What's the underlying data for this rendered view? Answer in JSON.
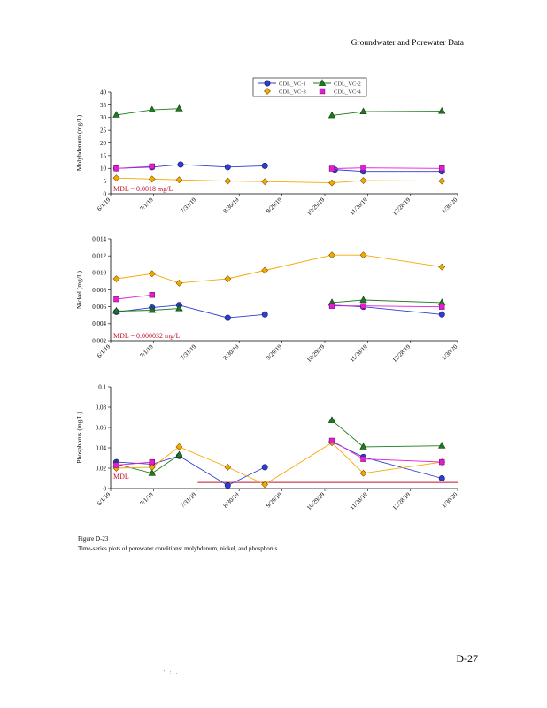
{
  "page": {
    "header": "Groundwater and Porewater Data",
    "caption_line1": "Figure D-23",
    "caption_line2": "Time-series plots of porewater conditions: molybdenum, nickel, and phosphorus",
    "page_number": "D-27",
    "footer_mark": "' ; ,"
  },
  "chart_data": [
    {
      "type": "line",
      "title": "",
      "ylabel": "Molybdenum (mg/L)",
      "xlabel": "",
      "ylim": [
        0,
        40
      ],
      "yticks": [
        0,
        5,
        10,
        15,
        20,
        25,
        30,
        35,
        40
      ],
      "ytick_labels": [
        "0",
        "5",
        "10",
        "15",
        "20",
        "25",
        "30",
        "35",
        "40"
      ],
      "xlim": [
        "2019-06-01",
        "2020-01-30"
      ],
      "xtick_dates": [
        "2019-06-01",
        "2019-07-01",
        "2019-07-31",
        "2019-08-30",
        "2019-09-29",
        "2019-10-29",
        "2019-11-28",
        "2019-12-28",
        "2020-01-30"
      ],
      "xtick_labels": [
        "6/1/19",
        "7/1/19",
        "7/31/19",
        "8/30/19",
        "9/29/19",
        "10/29/19",
        "11/28/19",
        "12/28/19",
        "1/30/20"
      ],
      "legend": {
        "placement": "top-center",
        "entries": [
          "CDL_VC-1",
          "CDL_VC-2",
          "CDL_VC-3",
          "CDL_VC-4"
        ]
      },
      "mdl_label": "MDL = 0.0018 mg/L",
      "mdl_line": null,
      "series": [
        {
          "name": "CDL_VC-1",
          "color": "#2a3fd1",
          "marker": "circle",
          "segments": [
            [
              [
                "2019-06-05",
                10.0
              ],
              [
                "2019-06-30",
                10.5
              ],
              [
                "2019-07-20",
                11.5
              ],
              [
                "2019-08-22",
                10.5
              ],
              [
                "2019-09-17",
                11.0
              ]
            ],
            [
              [
                "2019-11-05",
                9.5
              ],
              [
                "2019-11-25",
                8.8
              ],
              [
                "2020-01-19",
                8.8
              ]
            ]
          ]
        },
        {
          "name": "CDL_VC-2",
          "color": "#1e7a1e",
          "marker": "triangle",
          "segments": [
            [
              [
                "2019-06-05",
                31.0
              ],
              [
                "2019-06-30",
                33.0
              ],
              [
                "2019-07-19",
                33.5
              ]
            ],
            [
              [
                "2019-11-03",
                30.8
              ],
              [
                "2019-11-25",
                32.3
              ],
              [
                "2020-01-19",
                32.5
              ]
            ]
          ]
        },
        {
          "name": "CDL_VC-3",
          "color": "#f5a800",
          "marker": "diamond",
          "segments": [
            [
              [
                "2019-06-05",
                6.2
              ],
              [
                "2019-06-30",
                5.8
              ],
              [
                "2019-07-19",
                5.5
              ],
              [
                "2019-08-22",
                5.0
              ],
              [
                "2019-09-17",
                4.8
              ],
              [
                "2019-11-03",
                4.3
              ],
              [
                "2019-11-25",
                5.2
              ],
              [
                "2020-01-19",
                5.0
              ]
            ]
          ]
        },
        {
          "name": "CDL_VC-4",
          "color": "#e21ed5",
          "marker": "square",
          "segments": [
            [
              [
                "2019-06-05",
                10.0
              ],
              [
                "2019-06-30",
                10.8
              ]
            ],
            [
              [
                "2019-11-03",
                9.9
              ],
              [
                "2019-11-25",
                10.2
              ],
              [
                "2020-01-19",
                10.0
              ]
            ]
          ]
        }
      ]
    },
    {
      "type": "line",
      "title": "",
      "ylabel": "Nickel (mg/L)",
      "xlabel": "",
      "ylim": [
        0.002,
        0.014
      ],
      "yticks": [
        0.002,
        0.004,
        0.006,
        0.008,
        0.01,
        0.012,
        0.014
      ],
      "ytick_labels": [
        "0.002",
        "0.004",
        "0.006",
        "0.008",
        "0.010",
        "0.012",
        "0.014"
      ],
      "xlim": [
        "2019-06-01",
        "2020-01-30"
      ],
      "xtick_dates": [
        "2019-06-01",
        "2019-07-01",
        "2019-07-31",
        "2019-08-30",
        "2019-09-29",
        "2019-10-29",
        "2019-11-28",
        "2019-12-28",
        "2020-01-30"
      ],
      "xtick_labels": [
        "6/1/19",
        "7/1/19",
        "7/31/19",
        "8/30/19",
        "9/29/19",
        "10/29/19",
        "11/28/19",
        "12/28/19",
        "1/30/20"
      ],
      "legend": null,
      "mdl_label": "MDL = 0.000032 mg/L",
      "mdl_line": null,
      "series": [
        {
          "name": "CDL_VC-1",
          "color": "#2a3fd1",
          "marker": "circle",
          "segments": [
            [
              [
                "2019-06-05",
                0.0054
              ],
              [
                "2019-06-30",
                0.0059
              ],
              [
                "2019-07-19",
                0.0062
              ],
              [
                "2019-08-22",
                0.0047
              ],
              [
                "2019-09-17",
                0.0051
              ]
            ],
            [
              [
                "2019-11-03",
                0.0062
              ],
              [
                "2019-11-25",
                0.006
              ],
              [
                "2020-01-19",
                0.0051
              ]
            ]
          ]
        },
        {
          "name": "CDL_VC-2",
          "color": "#1e7a1e",
          "marker": "triangle",
          "segments": [
            [
              [
                "2019-06-05",
                0.0055
              ],
              [
                "2019-06-30",
                0.0056
              ],
              [
                "2019-07-19",
                0.0058
              ]
            ],
            [
              [
                "2019-11-03",
                0.0065
              ],
              [
                "2019-11-25",
                0.0068
              ],
              [
                "2020-01-19",
                0.0065
              ]
            ]
          ]
        },
        {
          "name": "CDL_VC-3",
          "color": "#f5a800",
          "marker": "diamond",
          "segments": [
            [
              [
                "2019-06-05",
                0.0093
              ],
              [
                "2019-06-30",
                0.0099
              ],
              [
                "2019-07-19",
                0.0088
              ],
              [
                "2019-08-22",
                0.0093
              ],
              [
                "2019-09-17",
                0.0103
              ],
              [
                "2019-11-03",
                0.0121
              ],
              [
                "2019-11-25",
                0.0121
              ],
              [
                "2020-01-19",
                0.0107
              ]
            ]
          ]
        },
        {
          "name": "CDL_VC-4",
          "color": "#e21ed5",
          "marker": "square",
          "segments": [
            [
              [
                "2019-06-05",
                0.0069
              ],
              [
                "2019-06-30",
                0.0074
              ]
            ],
            [
              [
                "2019-11-03",
                0.0061
              ],
              [
                "2019-11-25",
                0.0061
              ],
              [
                "2020-01-19",
                0.006
              ]
            ]
          ]
        }
      ]
    },
    {
      "type": "line",
      "title": "",
      "ylabel": "Phosphorus (mg/L)",
      "xlabel": "",
      "ylim": [
        0,
        0.1
      ],
      "yticks": [
        0,
        0.02,
        0.04,
        0.06,
        0.08,
        0.1
      ],
      "ytick_labels": [
        "0",
        "0.02",
        "0.04",
        "0.06",
        "0.08",
        "0.1"
      ],
      "xlim": [
        "2019-06-01",
        "2020-01-30"
      ],
      "xtick_dates": [
        "2019-06-01",
        "2019-07-01",
        "2019-07-31",
        "2019-08-30",
        "2019-09-29",
        "2019-10-29",
        "2019-11-28",
        "2019-12-28",
        "2020-01-30"
      ],
      "xtick_labels": [
        "6/1/19",
        "7/1/19",
        "7/31/19",
        "8/30/19",
        "9/29/19",
        "10/29/19",
        "11/28/19",
        "12/28/19",
        "1/30/20"
      ],
      "legend": null,
      "mdl_label": "MDL",
      "mdl_line": {
        "value": 0.006,
        "from": "2019-08-01",
        "to": "2020-01-30",
        "color": "#c0102a"
      },
      "series": [
        {
          "name": "CDL_VC-1",
          "color": "#2a3fd1",
          "marker": "circle",
          "segments": [
            [
              [
                "2019-06-05",
                0.026
              ],
              [
                "2019-06-30",
                0.024
              ],
              [
                "2019-07-19",
                0.032
              ],
              [
                "2019-08-22",
                0.003
              ],
              [
                "2019-09-17",
                0.021
              ]
            ],
            [
              [
                "2019-11-03",
                0.046
              ],
              [
                "2019-11-25",
                0.031
              ],
              [
                "2020-01-19",
                0.01
              ]
            ]
          ]
        },
        {
          "name": "CDL_VC-2",
          "color": "#1e7a1e",
          "marker": "triangle",
          "segments": [
            [
              [
                "2019-06-05",
                0.024
              ],
              [
                "2019-06-30",
                0.015
              ],
              [
                "2019-07-19",
                0.033
              ]
            ],
            [
              [
                "2019-11-03",
                0.067
              ],
              [
                "2019-11-25",
                0.041
              ],
              [
                "2020-01-19",
                0.042
              ]
            ]
          ]
        },
        {
          "name": "CDL_VC-3",
          "color": "#f5a800",
          "marker": "diamond",
          "segments": [
            [
              [
                "2019-06-05",
                0.02
              ],
              [
                "2019-06-30",
                0.021
              ],
              [
                "2019-07-19",
                0.041
              ],
              [
                "2019-08-22",
                0.021
              ],
              [
                "2019-09-17",
                0.004
              ],
              [
                "2019-11-03",
                0.045
              ],
              [
                "2019-11-25",
                0.015
              ],
              [
                "2020-01-19",
                0.026
              ]
            ]
          ]
        },
        {
          "name": "CDL_VC-4",
          "color": "#e21ed5",
          "marker": "square",
          "segments": [
            [
              [
                "2019-06-05",
                0.023
              ],
              [
                "2019-06-30",
                0.026
              ]
            ],
            [
              [
                "2019-11-03",
                0.047
              ],
              [
                "2019-11-25",
                0.029
              ],
              [
                "2020-01-19",
                0.026
              ]
            ]
          ]
        }
      ]
    }
  ]
}
